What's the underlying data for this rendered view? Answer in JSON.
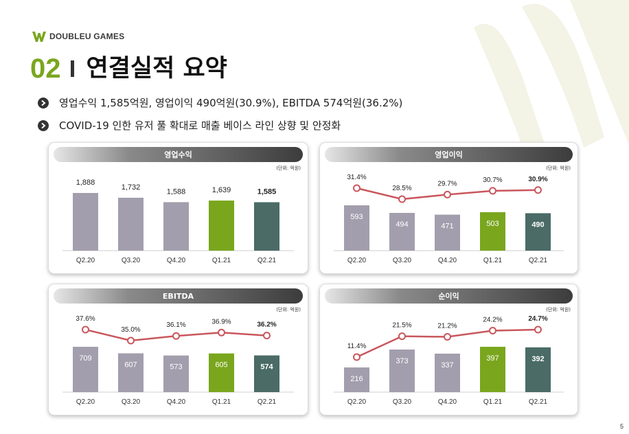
{
  "brand": {
    "logo_text": "DOUBLEU GAMES",
    "logo_icon": "doubleu-w-logo",
    "accent": "#7aa61e"
  },
  "slide": {
    "number": "02",
    "title": "연결실적 요약",
    "bullets": [
      "영업수익 1,585억원, 영업이익 490억원(30.9%), EBITDA 574억원(36.2%)",
      "COVID-19 인한 유저 풀 확대로 매출 베이스 라인 상향 및 안정화"
    ],
    "page": "5"
  },
  "colors": {
    "bar_past": "#a39ead",
    "bar_q1": "#7aa61e",
    "bar_current": "#4a6b66",
    "line": "#c9565c",
    "header_dark": "#3c3c3c"
  },
  "chart_data": [
    {
      "type": "bar",
      "title": "영업수익",
      "unit": "(단위: 억원)",
      "categories": [
        "Q2.20",
        "Q3.20",
        "Q4.20",
        "Q1.21",
        "Q2.21"
      ],
      "values": [
        1888,
        1732,
        1588,
        1639,
        1585
      ],
      "value_labels": [
        "1,888",
        "1,732",
        "1,588",
        "1,639",
        "1,585"
      ]
    },
    {
      "type": "bar",
      "title": "영업이익",
      "unit": "(단위: 억원)",
      "categories": [
        "Q2.20",
        "Q3.20",
        "Q4.20",
        "Q1.21",
        "Q2.21"
      ],
      "values": [
        593,
        494,
        471,
        503,
        490
      ],
      "value_labels": [
        "593",
        "494",
        "471",
        "503",
        "490"
      ],
      "margin": [
        31.4,
        28.5,
        29.7,
        30.7,
        30.9
      ],
      "margin_labels": [
        "31.4%",
        "28.5%",
        "29.7%",
        "30.7%",
        "30.9%"
      ]
    },
    {
      "type": "bar",
      "title": "EBITDA",
      "unit": "(단위: 억원)",
      "categories": [
        "Q2.20",
        "Q3.20",
        "Q4.20",
        "Q1.21",
        "Q2.21"
      ],
      "values": [
        709,
        607,
        573,
        605,
        574
      ],
      "value_labels": [
        "709",
        "607",
        "573",
        "605",
        "574"
      ],
      "margin": [
        37.6,
        35.0,
        36.1,
        36.9,
        36.2
      ],
      "margin_labels": [
        "37.6%",
        "35.0%",
        "36.1%",
        "36.9%",
        "36.2%"
      ]
    },
    {
      "type": "bar",
      "title": "순이익",
      "unit": "(단위: 억원)",
      "categories": [
        "Q2.20",
        "Q3.20",
        "Q4.20",
        "Q1.21",
        "Q2.21"
      ],
      "values": [
        216,
        373,
        337,
        397,
        392
      ],
      "value_labels": [
        "216",
        "373",
        "337",
        "397",
        "392"
      ],
      "margin": [
        11.4,
        21.5,
        21.2,
        24.2,
        24.7
      ],
      "margin_labels": [
        "11.4%",
        "21.5%",
        "21.2%",
        "24.2%",
        "24.7%"
      ]
    }
  ]
}
